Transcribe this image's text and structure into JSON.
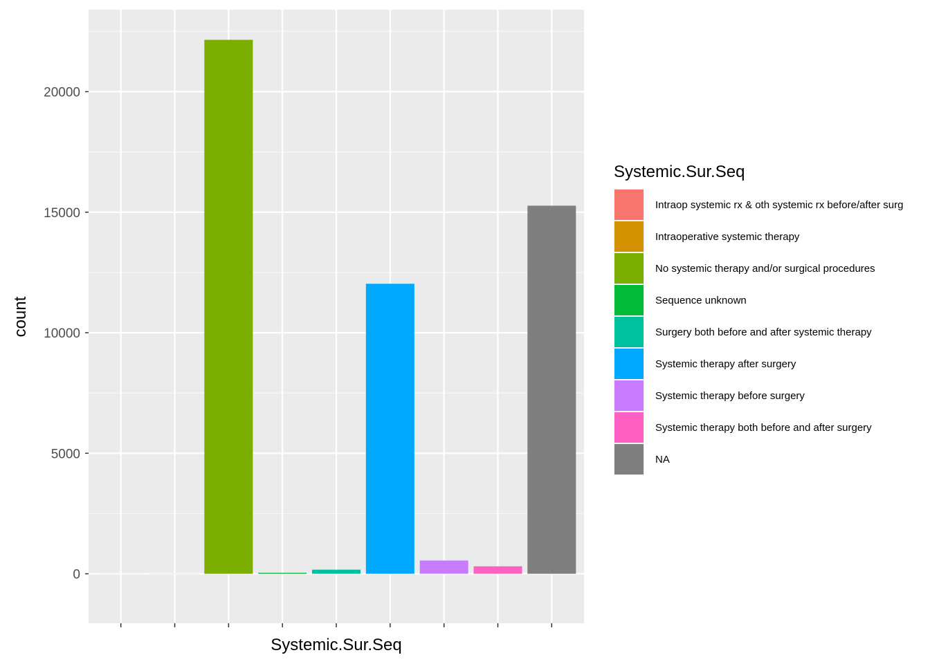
{
  "chart_data": {
    "type": "bar",
    "xlabel": "Systemic.Sur.Seq",
    "ylabel": "count",
    "ylim": [
      -2050,
      23400
    ],
    "yticks": [
      0,
      5000,
      10000,
      15000,
      20000
    ],
    "grid": true,
    "legend_position": "right",
    "legend_title": "Systemic.Sur.Seq",
    "categories": [
      "Intraop systemic rx & oth systemic rx before/after surg",
      "Intraoperative systemic therapy",
      "No systemic therapy and/or surgical procedures",
      "Sequence unknown",
      "Surgery both before and after systemic therapy",
      "Systemic therapy after surgery",
      "Systemic therapy before surgery",
      "Systemic therapy both before and after surgery",
      "NA"
    ],
    "values": [
      2,
      5,
      22150,
      40,
      170,
      12030,
      550,
      310,
      15270
    ],
    "colors": [
      "#F8766D",
      "#D39200",
      "#7CAE00",
      "#00BA38",
      "#00C19F",
      "#00A9FF",
      "#C77CFF",
      "#FF61C3",
      "#7F7F7F"
    ]
  }
}
